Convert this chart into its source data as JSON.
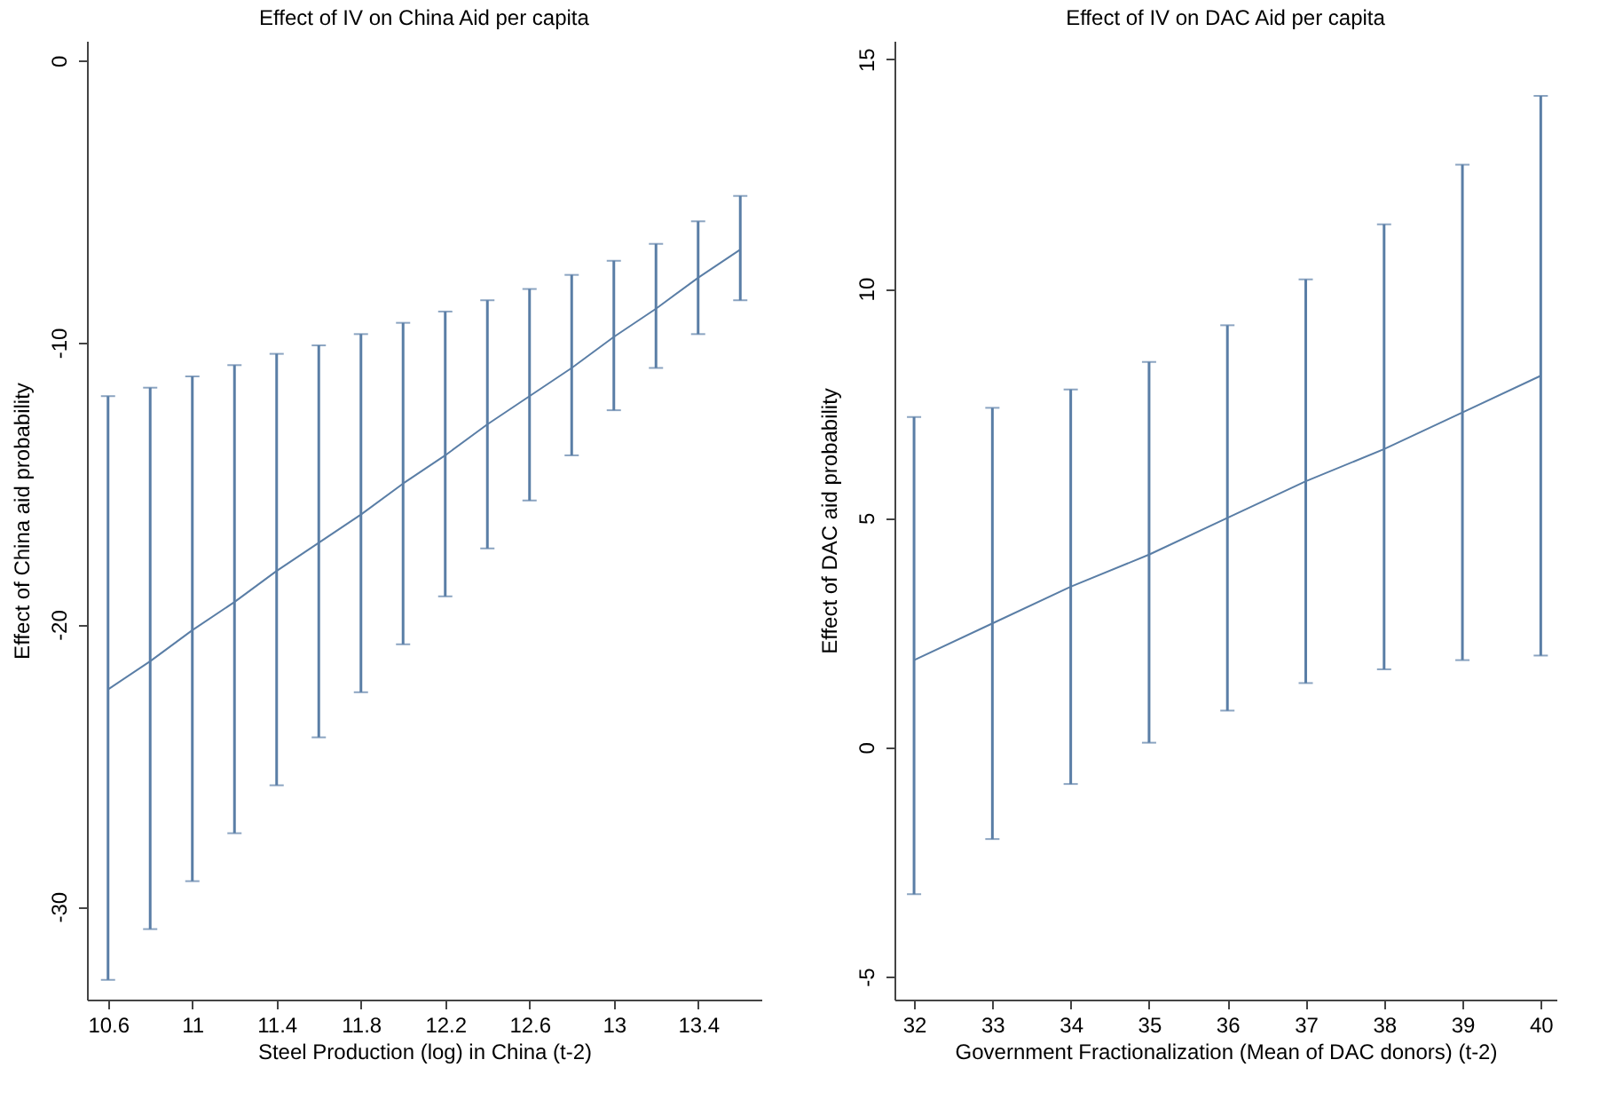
{
  "chart_data": [
    {
      "type": "line",
      "title": "Effect of IV on China Aid per capita",
      "xlabel": "Steel Production (log) in China (t-2)",
      "ylabel": "Effect of China aid probability",
      "x": [
        10.6,
        10.8,
        11.0,
        11.2,
        11.4,
        11.6,
        11.8,
        12.0,
        12.2,
        12.4,
        12.6,
        12.8,
        13.0,
        13.2,
        13.4,
        13.6
      ],
      "series": [
        {
          "color": "#5a7ea6",
          "values": [
            -22.3,
            -21.3,
            -20.2,
            -19.2,
            -18.1,
            -17.1,
            -16.1,
            -15.0,
            -14.0,
            -12.9,
            -11.9,
            -10.9,
            -9.8,
            -8.8,
            -7.7,
            -6.7
          ],
          "errors": [
            [
              -32.6,
              -11.9
            ],
            [
              -30.8,
              -11.6
            ],
            [
              -29.1,
              -11.2
            ],
            [
              -27.4,
              -10.8
            ],
            [
              -25.7,
              -10.4
            ],
            [
              -24.0,
              -10.1
            ],
            [
              -22.4,
              -9.7
            ],
            [
              -20.7,
              -9.3
            ],
            [
              -19.0,
              -8.9
            ],
            [
              -17.3,
              -8.5
            ],
            [
              -15.6,
              -8.1
            ],
            [
              -14.0,
              -7.6
            ],
            [
              -12.4,
              -7.1
            ],
            [
              -10.9,
              -6.5
            ],
            [
              -9.7,
              -5.7
            ],
            [
              -8.5,
              -4.8
            ]
          ]
        }
      ],
      "xlim": [
        10.5,
        13.7
      ],
      "xticks": [
        10.6,
        11,
        11.4,
        11.8,
        12.2,
        12.6,
        13,
        13.4
      ],
      "ylim": [
        -33.3,
        0.7
      ],
      "yticks": [
        -30,
        -20,
        -10,
        0
      ],
      "grid": false,
      "marker": "none"
    },
    {
      "type": "line",
      "title": "Effect of IV on DAC Aid per capita",
      "xlabel": "Government Fractionalization (Mean of DAC donors) (t-2)",
      "ylabel": "Effect of DAC aid probability",
      "x": [
        32,
        33,
        34,
        35,
        36,
        37,
        38,
        39,
        40
      ],
      "series": [
        {
          "color": "#5a7ea6",
          "values": [
            1.9,
            2.7,
            3.5,
            4.2,
            5.0,
            5.8,
            6.5,
            7.3,
            8.1
          ],
          "errors": [
            [
              -3.2,
              7.2
            ],
            [
              -2.0,
              7.4
            ],
            [
              -0.8,
              7.8
            ],
            [
              0.1,
              8.4
            ],
            [
              0.8,
              9.2
            ],
            [
              1.4,
              10.2
            ],
            [
              1.7,
              11.4
            ],
            [
              1.9,
              12.7
            ],
            [
              2.0,
              14.2
            ]
          ]
        }
      ],
      "xlim": [
        31.75,
        40.2
      ],
      "xticks": [
        32,
        33,
        34,
        35,
        36,
        37,
        38,
        39,
        40
      ],
      "ylim": [
        -5.5,
        15.4
      ],
      "yticks": [
        -5,
        0,
        5,
        10,
        15
      ],
      "grid": false,
      "marker": "none"
    }
  ]
}
